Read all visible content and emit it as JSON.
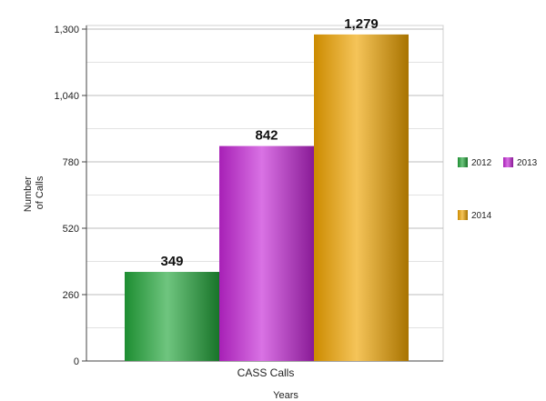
{
  "chart_data": {
    "type": "bar",
    "categories": [
      "CASS Calls"
    ],
    "series": [
      {
        "name": "2012",
        "values": [
          349
        ],
        "color": "#22a63a"
      },
      {
        "name": "2013",
        "values": [
          842
        ],
        "color": "#c426d6"
      },
      {
        "name": "2014",
        "values": [
          1279
        ],
        "color": "#f0a400"
      }
    ],
    "data_labels": [
      "349",
      "842",
      "1,279"
    ],
    "ylabel": [
      "Number",
      "of Calls"
    ],
    "xlabel": "Years",
    "ylim": [
      0,
      1300
    ],
    "yticks": [
      0,
      260,
      520,
      780,
      1040,
      1300
    ],
    "ytick_labels": [
      "0",
      "260",
      "520",
      "780",
      "1,040",
      "1,300"
    ],
    "grid": true,
    "legend_position": "right"
  }
}
